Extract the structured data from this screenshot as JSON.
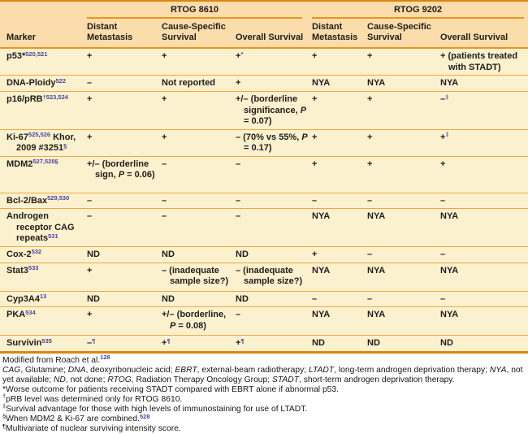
{
  "colors": {
    "header_bg": "#fbdcab",
    "row_bg": "#fcf1cf",
    "rule": "#f0a83d",
    "border": "#e0820f",
    "group_underline": "#ea9420",
    "sup": "#4645a0",
    "text": "#201c18"
  },
  "table": {
    "groups": [
      {
        "label": "RTOG 8610"
      },
      {
        "label": "RTOG 9202"
      }
    ],
    "columns": [
      "Marker",
      "Distant Metastasis",
      "Cause-Specific Survival",
      "Overall Survival",
      "Distant Metastasis",
      "Cause-Specific Survival",
      "Overall Survival"
    ],
    "rows": [
      {
        "marker": [
          {
            "t": "p53*"
          },
          {
            "s": "520,521"
          }
        ],
        "cells": [
          [
            {
              "t": "+"
            }
          ],
          [
            {
              "t": "+"
            }
          ],
          [
            {
              "t": "+"
            },
            {
              "s": "*"
            }
          ],
          [
            {
              "t": "+"
            }
          ],
          [
            {
              "t": "+"
            }
          ],
          [
            {
              "t": "+ (patients treated with STADT)"
            }
          ]
        ]
      },
      {
        "marker": [
          {
            "t": "DNA-Ploidy"
          },
          {
            "s": "522"
          }
        ],
        "cells": [
          [
            {
              "t": "–"
            }
          ],
          [
            {
              "t": "Not reported"
            }
          ],
          [
            {
              "t": "+"
            }
          ],
          [
            {
              "t": "NYA"
            }
          ],
          [
            {
              "t": "NYA"
            }
          ],
          [
            {
              "t": "NYA"
            }
          ]
        ]
      },
      {
        "marker": [
          {
            "t": "p16/pRB"
          },
          {
            "s": "†523,524"
          }
        ],
        "cells": [
          [
            {
              "t": "+"
            }
          ],
          [
            {
              "t": "+"
            }
          ],
          [
            {
              "t": "+/– (borderline significance, "
            },
            {
              "i": "P"
            },
            {
              "t": " = 0.07)"
            }
          ],
          [
            {
              "t": "+"
            }
          ],
          [
            {
              "t": "+"
            }
          ],
          [
            {
              "t": "–"
            },
            {
              "s": "‡"
            }
          ]
        ]
      },
      {
        "marker": [
          {
            "t": "Ki-67"
          },
          {
            "s": "525,526"
          },
          {
            "t": " Khor, 2009 #3251"
          },
          {
            "s": "§"
          }
        ],
        "cells": [
          [
            {
              "t": "+"
            }
          ],
          [
            {
              "t": "+"
            }
          ],
          [
            {
              "t": "– (70% vs 55%, "
            },
            {
              "i": "P"
            },
            {
              "t": " = 0.17)"
            }
          ],
          [
            {
              "t": "+"
            }
          ],
          [
            {
              "t": "+"
            }
          ],
          [
            {
              "t": "+"
            },
            {
              "s": "‡"
            }
          ]
        ]
      },
      {
        "marker": [
          {
            "t": "MDM2"
          },
          {
            "s": "527,528§"
          }
        ],
        "cells": [
          [
            {
              "t": "+/– (borderline sign, "
            },
            {
              "i": "P"
            },
            {
              "t": " = 0.06)"
            }
          ],
          [
            {
              "t": "–"
            }
          ],
          [
            {
              "t": "–"
            }
          ],
          [
            {
              "t": "+"
            }
          ],
          [
            {
              "t": "+"
            }
          ],
          [
            {
              "t": "+"
            }
          ]
        ]
      },
      {
        "marker": [
          {
            "t": "Bcl-2/Bax"
          },
          {
            "s": "529,530"
          }
        ],
        "cells": [
          [
            {
              "t": "–"
            }
          ],
          [
            {
              "t": "–"
            }
          ],
          [
            {
              "t": "–"
            }
          ],
          [
            {
              "t": "–"
            }
          ],
          [
            {
              "t": "–"
            }
          ],
          [
            {
              "t": "–"
            }
          ]
        ]
      },
      {
        "marker": [
          {
            "t": "Androgen receptor CAG repeats"
          },
          {
            "s": "531"
          }
        ],
        "cells": [
          [
            {
              "t": "–"
            }
          ],
          [
            {
              "t": "–"
            }
          ],
          [
            {
              "t": "–"
            }
          ],
          [
            {
              "t": "NYA"
            }
          ],
          [
            {
              "t": "NYA"
            }
          ],
          [
            {
              "t": "NYA"
            }
          ]
        ]
      },
      {
        "marker": [
          {
            "t": "Cox-2"
          },
          {
            "s": "532"
          }
        ],
        "cells": [
          [
            {
              "t": "ND"
            }
          ],
          [
            {
              "t": "ND"
            }
          ],
          [
            {
              "t": "ND"
            }
          ],
          [
            {
              "t": "+"
            }
          ],
          [
            {
              "t": "–"
            }
          ],
          [
            {
              "t": "–"
            }
          ]
        ]
      },
      {
        "marker": [
          {
            "t": "Stat3"
          },
          {
            "s": "533"
          }
        ],
        "cells": [
          [
            {
              "t": "+"
            }
          ],
          [
            {
              "t": "– (inadequate sample size?)"
            }
          ],
          [
            {
              "t": "– (inadequate sample size?)"
            }
          ],
          [
            {
              "t": "NYA"
            }
          ],
          [
            {
              "t": "NYA"
            }
          ],
          [
            {
              "t": "NYA"
            }
          ]
        ]
      },
      {
        "marker": [
          {
            "t": "Cyp3A4"
          },
          {
            "s": "13"
          }
        ],
        "cells": [
          [
            {
              "t": "ND"
            }
          ],
          [
            {
              "t": "ND"
            }
          ],
          [
            {
              "t": "ND"
            }
          ],
          [
            {
              "t": "–"
            }
          ],
          [
            {
              "t": "–"
            }
          ],
          [
            {
              "t": "–"
            }
          ]
        ]
      },
      {
        "marker": [
          {
            "t": "PKA"
          },
          {
            "s": "534"
          }
        ],
        "cells": [
          [
            {
              "t": "+"
            }
          ],
          [
            {
              "t": "+/– (borderline, "
            },
            {
              "i": "P"
            },
            {
              "t": " = 0.08)"
            }
          ],
          [
            {
              "t": "–"
            }
          ],
          [
            {
              "t": "NYA"
            }
          ],
          [
            {
              "t": "NYA"
            }
          ],
          [
            {
              "t": "NYA"
            }
          ]
        ]
      },
      {
        "marker": [
          {
            "t": "Survivin"
          },
          {
            "s": "535"
          }
        ],
        "cells": [
          [
            {
              "t": "–"
            },
            {
              "s": "¶"
            }
          ],
          [
            {
              "t": "+"
            },
            {
              "s": "¶"
            }
          ],
          [
            {
              "t": "+"
            },
            {
              "s": "¶"
            }
          ],
          [
            {
              "t": "ND"
            }
          ],
          [
            {
              "t": "ND"
            }
          ],
          [
            {
              "t": "ND"
            }
          ]
        ]
      }
    ]
  },
  "footnotes": {
    "source": [
      {
        "t": "Modified from Roach et al."
      },
      {
        "s": "128"
      }
    ],
    "abbreviations": [
      {
        "i": "CAG"
      },
      {
        "t": ", Glutamine; "
      },
      {
        "i": "DNA"
      },
      {
        "t": ", deoxyribonucleic acid; "
      },
      {
        "i": "EBRT"
      },
      {
        "t": ", external-beam radiotherapy; "
      },
      {
        "i": "LTADT"
      },
      {
        "t": ", long-term androgen deprivation therapy; "
      },
      {
        "i": "NYA"
      },
      {
        "t": ", not yet available; "
      },
      {
        "i": "ND"
      },
      {
        "t": ", not done; "
      },
      {
        "i": "RTOG"
      },
      {
        "t": ", Radiation Therapy Oncology Group; "
      },
      {
        "i": "STADT"
      },
      {
        "t": ", short-term androgen deprivation therapy."
      }
    ],
    "notes": [
      [
        {
          "t": "*Worse outcome for patients receiving STADT compared with EBRT alone if abnormal p53."
        }
      ],
      [
        {
          "n": "†"
        },
        {
          "t": "pRB level was determined only for RTOG 8610."
        }
      ],
      [
        {
          "n": "‡"
        },
        {
          "t": "Survival advantage for those with high levels of immunostaining for use of LTADT."
        }
      ],
      [
        {
          "n": "§"
        },
        {
          "t": "When MDM2 & Ki-67 are combined."
        },
        {
          "s": "528"
        }
      ],
      [
        {
          "n": "¶"
        },
        {
          "t": "Multivariate of nuclear surviving intensity score."
        }
      ]
    ]
  }
}
